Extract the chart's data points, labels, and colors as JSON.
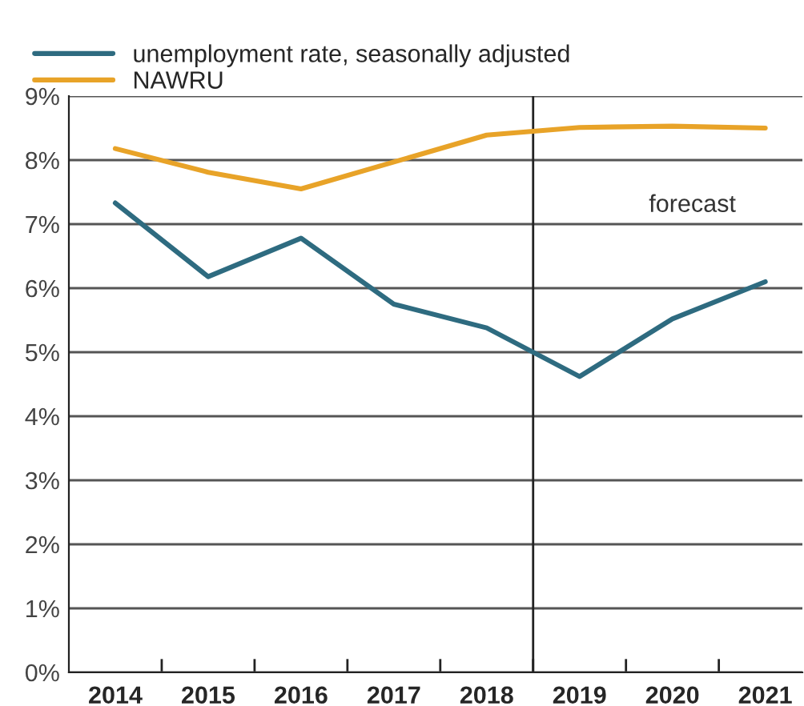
{
  "chart_data": {
    "type": "line",
    "x": [
      2014,
      2015,
      2016,
      2017,
      2018,
      2019,
      2020,
      2021
    ],
    "series": [
      {
        "name": "unemployment rate, seasonally adjusted",
        "color": "#2e6b80",
        "values": [
          7.33,
          6.18,
          6.78,
          5.75,
          5.38,
          4.62,
          5.52,
          6.1
        ]
      },
      {
        "name": "NAWRU",
        "color": "#e8a328",
        "values": [
          8.18,
          7.81,
          7.55,
          7.97,
          8.39,
          8.51,
          8.53,
          8.5
        ]
      }
    ],
    "xlim": [
      2013.5,
      2021.4
    ],
    "xticks": [
      {
        "value": 2014,
        "label": "2014"
      },
      {
        "value": 2014.5,
        "label": null
      },
      {
        "value": 2015,
        "label": "2015"
      },
      {
        "value": 2015.5,
        "label": null
      },
      {
        "value": 2016,
        "label": "2016"
      },
      {
        "value": 2016.5,
        "label": null
      },
      {
        "value": 2017,
        "label": "2017"
      },
      {
        "value": 2017.5,
        "label": null
      },
      {
        "value": 2018,
        "label": "2018"
      },
      {
        "value": 2018.5,
        "label": null
      },
      {
        "value": 2019,
        "label": "2019"
      },
      {
        "value": 2019.5,
        "label": null
      },
      {
        "value": 2020,
        "label": "2020"
      },
      {
        "value": 2020.5,
        "label": null
      },
      {
        "value": 2021,
        "label": "2021"
      }
    ],
    "ylim": [
      0,
      9
    ],
    "yticks": [
      {
        "value": 0,
        "label": "0%"
      },
      {
        "value": 1,
        "label": "1%"
      },
      {
        "value": 2,
        "label": "2%"
      },
      {
        "value": 3,
        "label": "3%"
      },
      {
        "value": 4,
        "label": "4%"
      },
      {
        "value": 5,
        "label": "5%"
      },
      {
        "value": 6,
        "label": "6%"
      },
      {
        "value": 7,
        "label": "7%"
      },
      {
        "value": 8,
        "label": "8%"
      },
      {
        "value": 9,
        "label": "9%"
      }
    ],
    "grid": "y",
    "legend": "top left",
    "marker": "none",
    "line_style": "solid",
    "ref_lines": [
      {
        "axis": "x",
        "value": 2018.5,
        "color": "#222222"
      }
    ],
    "annotations": [
      "forecast"
    ]
  }
}
